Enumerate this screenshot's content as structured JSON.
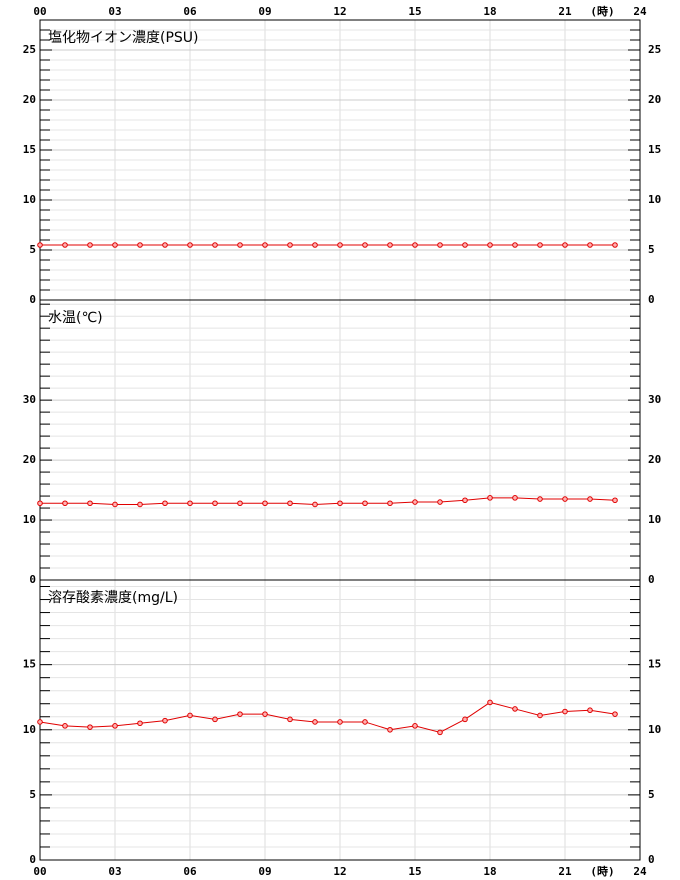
{
  "x_axis": {
    "xlim": [
      0,
      24
    ],
    "label": "(時)",
    "xticks": [
      {
        "value": 0,
        "label": "00"
      },
      {
        "value": 3,
        "label": "03"
      },
      {
        "value": 6,
        "label": "06"
      },
      {
        "value": 9,
        "label": "09"
      },
      {
        "value": 12,
        "label": "12"
      },
      {
        "value": 15,
        "label": "15"
      },
      {
        "value": 18,
        "label": "18"
      },
      {
        "value": 21,
        "label": "21"
      },
      24
    ]
  },
  "chart_data": [
    {
      "type": "line",
      "title": "塩化物イオン濃度(PSU)",
      "color": "#e00000",
      "x": [
        0,
        1,
        2,
        3,
        4,
        5,
        6,
        7,
        8,
        9,
        10,
        11,
        12,
        13,
        14,
        15,
        16,
        17,
        18,
        19,
        20,
        21,
        22,
        23
      ],
      "values": [
        5.5,
        5.5,
        5.5,
        5.5,
        5.5,
        5.5,
        5.5,
        5.5,
        5.5,
        5.5,
        5.5,
        5.5,
        5.5,
        5.5,
        5.5,
        5.5,
        5.5,
        5.5,
        5.5,
        5.5,
        5.5,
        5.5,
        5.5,
        5.5
      ],
      "ylim": [
        0,
        28
      ],
      "yticks": [
        0,
        5,
        10,
        15,
        20,
        25
      ],
      "minor_yticks": [
        1,
        2,
        3,
        4,
        6,
        7,
        8,
        9,
        11,
        12,
        13,
        14,
        16,
        17,
        18,
        19,
        21,
        22,
        23,
        24,
        26,
        27
      ]
    },
    {
      "type": "line",
      "title": "水温(℃)",
      "color": "#e00000",
      "x": [
        0,
        1,
        2,
        3,
        4,
        5,
        6,
        7,
        8,
        9,
        10,
        11,
        12,
        13,
        14,
        15,
        16,
        17,
        18,
        19,
        20,
        21,
        22,
        23
      ],
      "values": [
        12.8,
        12.8,
        12.8,
        12.6,
        12.6,
        12.8,
        12.8,
        12.8,
        12.8,
        12.8,
        12.8,
        12.6,
        12.8,
        12.8,
        12.8,
        13.0,
        13.0,
        13.3,
        13.7,
        13.7,
        13.5,
        13.5,
        13.5,
        13.3
      ],
      "ylim": [
        0,
        46.7
      ],
      "yticks": [
        0,
        10,
        20,
        30
      ],
      "minor_yticks": [
        2,
        4,
        6,
        8,
        12,
        14,
        16,
        18,
        22,
        24,
        26,
        28,
        32,
        34,
        36,
        38,
        40,
        42,
        44,
        46
      ]
    },
    {
      "type": "line",
      "title": "溶存酸素濃度(mg/L)",
      "color": "#e00000",
      "x": [
        0,
        1,
        2,
        3,
        4,
        5,
        6,
        7,
        8,
        9,
        10,
        11,
        12,
        13,
        14,
        15,
        16,
        17,
        18,
        19,
        20,
        21,
        22,
        23
      ],
      "values": [
        10.6,
        10.3,
        10.2,
        10.3,
        10.5,
        10.7,
        11.1,
        10.8,
        11.2,
        11.2,
        10.8,
        10.6,
        10.6,
        10.6,
        10.0,
        10.3,
        9.8,
        10.8,
        12.1,
        11.6,
        11.1,
        11.4,
        11.5,
        11.2
      ],
      "ylim": [
        0,
        21.5
      ],
      "yticks": [
        0,
        5,
        10,
        15
      ],
      "minor_yticks": [
        1,
        2,
        3,
        4,
        6,
        7,
        8,
        9,
        11,
        12,
        13,
        14,
        16,
        17,
        18,
        19,
        20,
        21
      ]
    }
  ]
}
